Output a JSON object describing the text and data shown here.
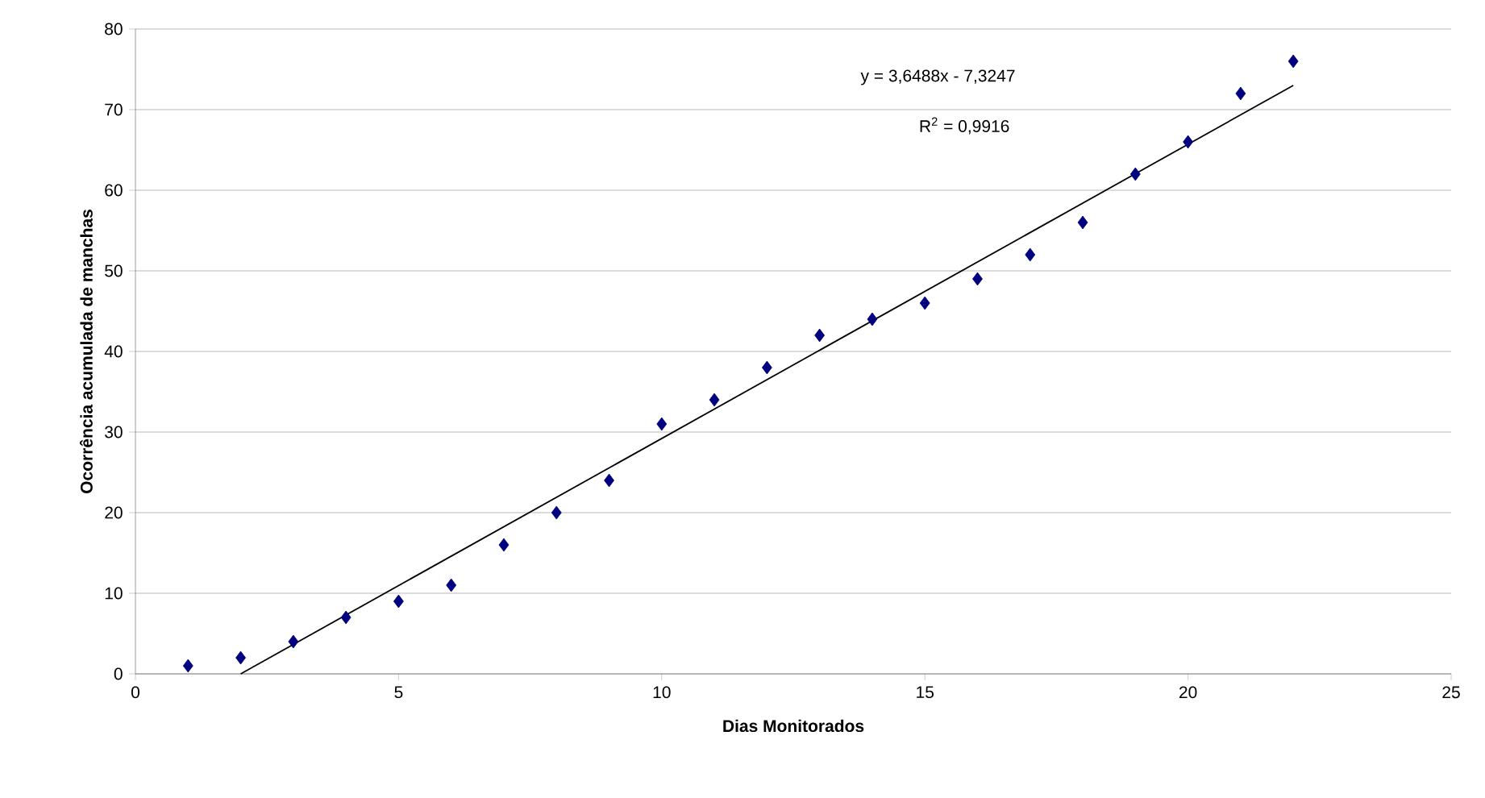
{
  "chart_data": {
    "type": "scatter",
    "xlabel": "Dias Monitorados",
    "ylabel": "Ocorrência acumulada de manchas",
    "xlim": [
      0,
      25
    ],
    "xticks": [
      0,
      5,
      10,
      15,
      20,
      25
    ],
    "ylim": [
      0,
      80
    ],
    "yticks": [
      0,
      10,
      20,
      30,
      40,
      50,
      60,
      70,
      80
    ],
    "grid": "y",
    "annotations": [
      "y = 3,6488x - 7,3247",
      "R$^{2}$ = 0,9916"
    ],
    "series": [
      {
        "color": "#000080",
        "marker": "diamond",
        "x": [
          1,
          2,
          3,
          4,
          5,
          6,
          7,
          8,
          9,
          10,
          11,
          12,
          13,
          14,
          15,
          16,
          17,
          18,
          19,
          20,
          21,
          22
        ],
        "values": [
          1,
          2,
          4,
          7,
          9,
          11,
          16,
          20,
          24,
          31,
          34,
          38,
          42,
          44,
          46,
          49,
          52,
          56,
          62,
          66,
          72,
          76
        ]
      },
      {
        "type": "line",
        "color": "#000000",
        "marker": "none",
        "line_style": "solid",
        "x": [
          2,
          22
        ],
        "values": [
          0,
          73
        ]
      }
    ]
  }
}
